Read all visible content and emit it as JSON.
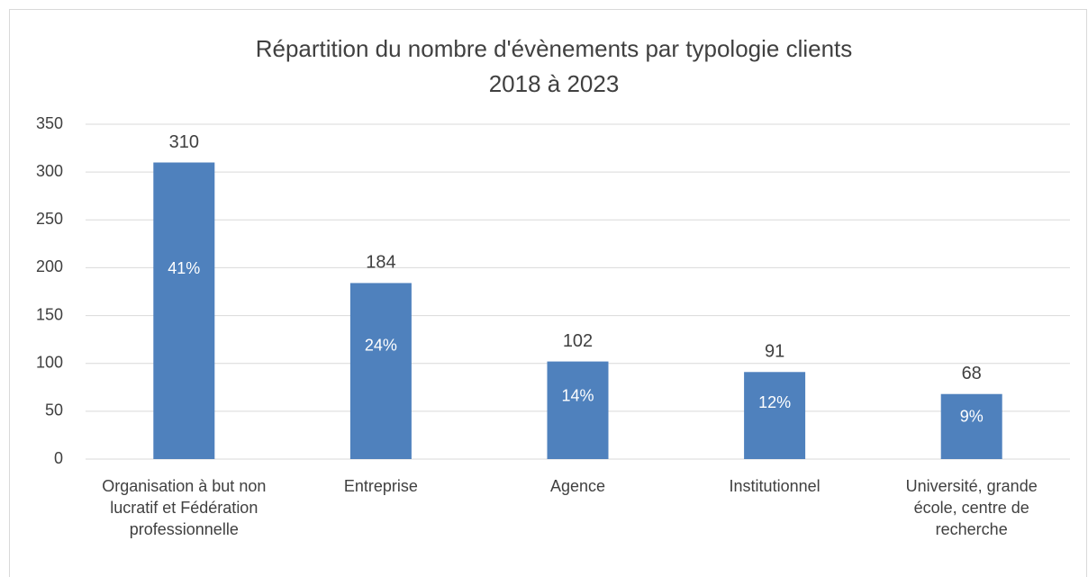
{
  "chart_data": {
    "type": "bar",
    "title": "Répartition du nombre d'évènements par typologie clients",
    "subtitle": "2018 à 2023",
    "categories": [
      "Organisation à but non lucratif et Fédération professionnelle",
      "Entreprise",
      "Agence",
      "Institutionnel",
      "Université, grande école, centre de recherche"
    ],
    "values": [
      310,
      184,
      102,
      91,
      68
    ],
    "share_labels": [
      "41%",
      "24%",
      "14%",
      "12%",
      "9%"
    ],
    "color": "#4f81bd",
    "ylim": [
      0,
      350
    ],
    "yticks": [
      0,
      50,
      100,
      150,
      200,
      250,
      300,
      350
    ],
    "grid": true
  }
}
